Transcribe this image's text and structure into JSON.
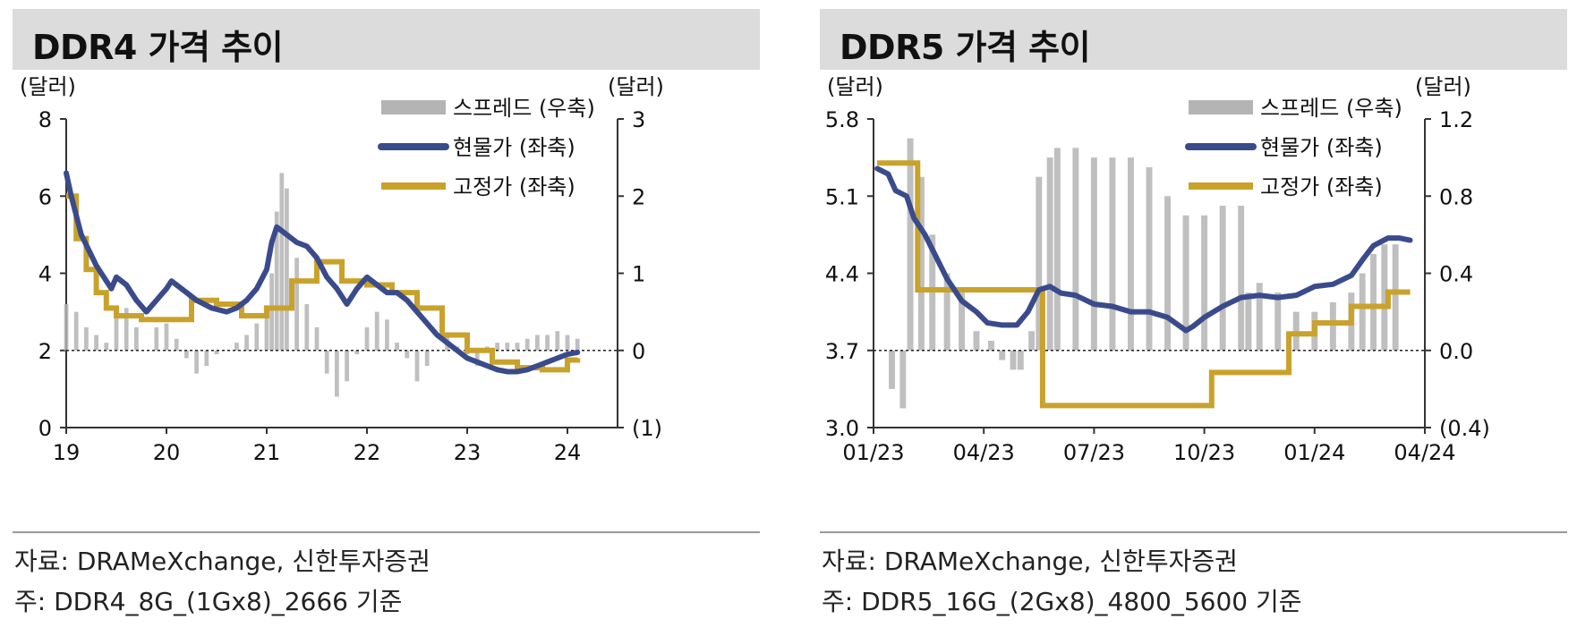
{
  "panels": [
    {
      "title": "DDR4 가격 추이",
      "source": "자료: DRAMeXchange, 신한투자증권",
      "note": "주: DDR4_8G_(1Gx8)_2666 기준"
    },
    {
      "title": "DDR5 가격 추이",
      "source": "자료: DRAMeXchange, 신한투자증권",
      "note": "주: DDR5_16G_(2Gx8)_4800_5600 기준"
    }
  ],
  "chart_data": [
    {
      "type": "line",
      "title": "DDR4 가격 추이",
      "left_axis_unit": "(달러)",
      "right_axis_unit": "(달러)",
      "legend_position": "top-right",
      "ylim_left": [
        0,
        8
      ],
      "yticks_left": [
        "8",
        "6",
        "4",
        "2",
        "0"
      ],
      "ylim_right": [
        -1,
        3
      ],
      "yticks_right": [
        "3",
        "2",
        "1",
        "0",
        "(1)"
      ],
      "xlim": [
        19,
        24.5
      ],
      "xticks": [
        "19",
        "20",
        "21",
        "22",
        "23",
        "24"
      ],
      "zero_line": true,
      "series": [
        {
          "name": "스프레드 (우축)",
          "kind": "bar",
          "axis": "right",
          "color": "#b4b4b4",
          "x": [
            19.0,
            19.1,
            19.2,
            19.3,
            19.4,
            19.5,
            19.6,
            19.7,
            19.8,
            19.9,
            20.0,
            20.1,
            20.2,
            20.3,
            20.4,
            20.5,
            20.6,
            20.7,
            20.8,
            20.9,
            21.0,
            21.05,
            21.1,
            21.15,
            21.2,
            21.3,
            21.4,
            21.5,
            21.6,
            21.7,
            21.8,
            21.9,
            22.0,
            22.1,
            22.2,
            22.3,
            22.4,
            22.5,
            22.6,
            22.7,
            22.8,
            22.9,
            23.0,
            23.1,
            23.2,
            23.3,
            23.4,
            23.5,
            23.6,
            23.7,
            23.8,
            23.9,
            24.0,
            24.1
          ],
          "values": [
            0.6,
            0.5,
            0.3,
            0.2,
            0.1,
            0.5,
            0.55,
            0.3,
            0.0,
            0.3,
            0.35,
            0.15,
            -0.1,
            -0.3,
            -0.2,
            -0.05,
            0.0,
            0.1,
            0.2,
            0.35,
            0.5,
            1.0,
            1.8,
            2.3,
            2.1,
            1.2,
            0.6,
            0.3,
            -0.3,
            -0.6,
            -0.4,
            -0.05,
            0.3,
            0.5,
            0.4,
            0.1,
            -0.1,
            -0.4,
            -0.2,
            0.0,
            0.2,
            0.05,
            -0.05,
            -0.2,
            0.05,
            0.1,
            0.1,
            0.1,
            0.15,
            0.2,
            0.2,
            0.25,
            0.2,
            0.15
          ]
        },
        {
          "name": "현물가 (좌축)",
          "kind": "line",
          "axis": "left",
          "color": "#3a4b8c",
          "x": [
            19.0,
            19.05,
            19.15,
            19.3,
            19.45,
            19.5,
            19.6,
            19.7,
            19.8,
            19.9,
            20.0,
            20.05,
            20.1,
            20.2,
            20.3,
            20.45,
            20.6,
            20.7,
            20.8,
            20.9,
            21.0,
            21.05,
            21.1,
            21.15,
            21.2,
            21.3,
            21.4,
            21.5,
            21.6,
            21.7,
            21.8,
            21.9,
            22.0,
            22.1,
            22.2,
            22.3,
            22.4,
            22.5,
            22.6,
            22.7,
            22.8,
            22.9,
            23.0,
            23.1,
            23.2,
            23.3,
            23.4,
            23.5,
            23.6,
            23.7,
            23.8,
            23.9,
            24.0,
            24.1
          ],
          "values": [
            6.6,
            6.0,
            5.0,
            4.2,
            3.6,
            3.9,
            3.7,
            3.3,
            3.0,
            3.3,
            3.6,
            3.8,
            3.7,
            3.5,
            3.3,
            3.1,
            3.0,
            3.1,
            3.3,
            3.6,
            4.1,
            4.8,
            5.2,
            5.1,
            5.0,
            4.8,
            4.7,
            4.4,
            3.9,
            3.6,
            3.2,
            3.6,
            3.9,
            3.7,
            3.5,
            3.5,
            3.3,
            3.0,
            2.7,
            2.4,
            2.2,
            2.0,
            1.8,
            1.7,
            1.6,
            1.5,
            1.45,
            1.45,
            1.5,
            1.6,
            1.7,
            1.8,
            1.9,
            1.95
          ]
        },
        {
          "name": "고정가 (좌축)",
          "kind": "step",
          "axis": "left",
          "color": "#c9a22c",
          "x": [
            19.0,
            19.1,
            19.2,
            19.3,
            19.4,
            19.5,
            19.75,
            20.0,
            20.25,
            20.5,
            20.75,
            21.0,
            21.25,
            21.5,
            21.75,
            22.0,
            22.25,
            22.5,
            22.75,
            23.0,
            23.25,
            23.5,
            23.75,
            24.0,
            24.1
          ],
          "values": [
            6.0,
            4.9,
            4.1,
            3.5,
            3.1,
            2.9,
            2.8,
            2.8,
            3.3,
            3.2,
            2.9,
            3.1,
            3.8,
            4.3,
            3.8,
            3.7,
            3.5,
            3.1,
            2.4,
            2.0,
            1.7,
            1.55,
            1.5,
            1.75,
            1.8
          ]
        }
      ]
    },
    {
      "type": "line",
      "title": "DDR5 가격 추이",
      "left_axis_unit": "(달러)",
      "right_axis_unit": "(달러)",
      "legend_position": "top-right",
      "ylim_left": [
        3.0,
        5.8
      ],
      "yticks_left": [
        "5.8",
        "5.1",
        "4.4",
        "3.7",
        "3.0"
      ],
      "ylim_right": [
        -0.4,
        1.2
      ],
      "yticks_right": [
        "1.2",
        "0.8",
        "0.4",
        "0.0",
        "(0.4)"
      ],
      "xlim": [
        0,
        15
      ],
      "xticks": [
        "01/23",
        "04/23",
        "07/23",
        "10/23",
        "01/24",
        "04/24"
      ],
      "zero_line": true,
      "series": [
        {
          "name": "스프레드 (우축)",
          "kind": "bar",
          "axis": "right",
          "color": "#b4b4b4",
          "x": [
            0.5,
            0.8,
            1.0,
            1.3,
            1.6,
            2.0,
            2.4,
            2.8,
            3.2,
            3.5,
            3.8,
            4.0,
            4.3,
            4.5,
            4.8,
            5.0,
            5.5,
            6.0,
            6.5,
            7.0,
            7.5,
            8.0,
            8.5,
            9.0,
            9.5,
            10.0,
            10.2,
            10.5,
            11.0,
            11.5,
            12.0,
            12.5,
            13.0,
            13.3,
            13.6,
            13.9,
            14.2
          ],
          "values": [
            -0.2,
            -0.3,
            1.1,
            0.9,
            0.6,
            0.4,
            0.3,
            0.1,
            0.05,
            -0.05,
            -0.1,
            -0.1,
            0.1,
            0.9,
            1.0,
            1.05,
            1.05,
            1.0,
            1.0,
            1.0,
            0.95,
            0.8,
            0.7,
            0.7,
            0.75,
            0.75,
            0.3,
            0.35,
            0.3,
            0.2,
            0.2,
            0.25,
            0.3,
            0.4,
            0.5,
            0.55,
            0.55
          ]
        },
        {
          "name": "현물가 (좌축)",
          "kind": "line",
          "axis": "left",
          "color": "#3a4b8c",
          "x": [
            0.1,
            0.4,
            0.6,
            0.9,
            1.1,
            1.4,
            1.7,
            2.0,
            2.4,
            2.8,
            3.1,
            3.5,
            3.9,
            4.2,
            4.5,
            4.8,
            5.1,
            5.5,
            6.0,
            6.5,
            7.0,
            7.5,
            8.0,
            8.5,
            8.7,
            9.0,
            9.5,
            10.0,
            10.5,
            11.0,
            11.5,
            12.0,
            12.5,
            13.0,
            13.3,
            13.6,
            14.0,
            14.3,
            14.6
          ],
          "values": [
            5.35,
            5.3,
            5.15,
            5.1,
            4.9,
            4.75,
            4.55,
            4.35,
            4.15,
            4.05,
            3.95,
            3.93,
            3.93,
            4.05,
            4.25,
            4.28,
            4.22,
            4.2,
            4.12,
            4.1,
            4.05,
            4.05,
            4.0,
            3.88,
            3.92,
            4.0,
            4.1,
            4.18,
            4.2,
            4.18,
            4.2,
            4.28,
            4.3,
            4.38,
            4.52,
            4.65,
            4.72,
            4.72,
            4.7
          ]
        },
        {
          "name": "고정가 (좌축)",
          "kind": "step",
          "axis": "left",
          "color": "#c9a22c",
          "x": [
            0.1,
            1.0,
            1.2,
            4.5,
            4.6,
            9.0,
            9.2,
            11.1,
            11.3,
            12.0,
            13.0,
            14.0,
            14.6
          ],
          "values": [
            5.4,
            5.4,
            4.25,
            4.25,
            3.2,
            3.2,
            3.5,
            3.5,
            3.85,
            3.95,
            4.1,
            4.23,
            4.23
          ]
        }
      ]
    }
  ]
}
